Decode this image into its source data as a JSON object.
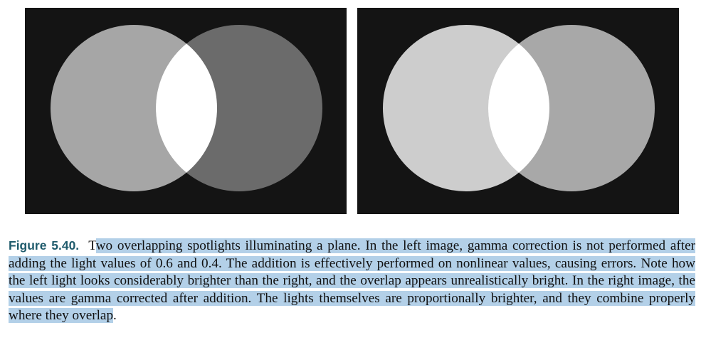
{
  "figure": {
    "label": "Figure 5.40.",
    "caption_first_letter": "T",
    "caption_highlighted": "wo overlapping spotlights illuminating a plane. In the left image, gamma correction is not performed after adding the light values of 0.6 and 0.4. The addition is effectively performed on nonlinear values, causing errors. Note how the left light looks considerably brighter than the right, and the overlap appears unrealistically bright. In the right image, the values are gamma corrected after addition. The lights themselves are proportionally brighter, and they combine properly where they overlap",
    "caption_end": "."
  },
  "images": {
    "background_color": "#141414",
    "highlight_color": "#b3d0e8",
    "left": {
      "left_light_color": "#a6a6a6",
      "right_light_color": "#6b6b6b",
      "overlap_color": "#ffffff"
    },
    "right": {
      "left_light_color": "#cdcdcd",
      "right_light_color": "#a8a8a8",
      "overlap_color": "#ffffff"
    }
  }
}
